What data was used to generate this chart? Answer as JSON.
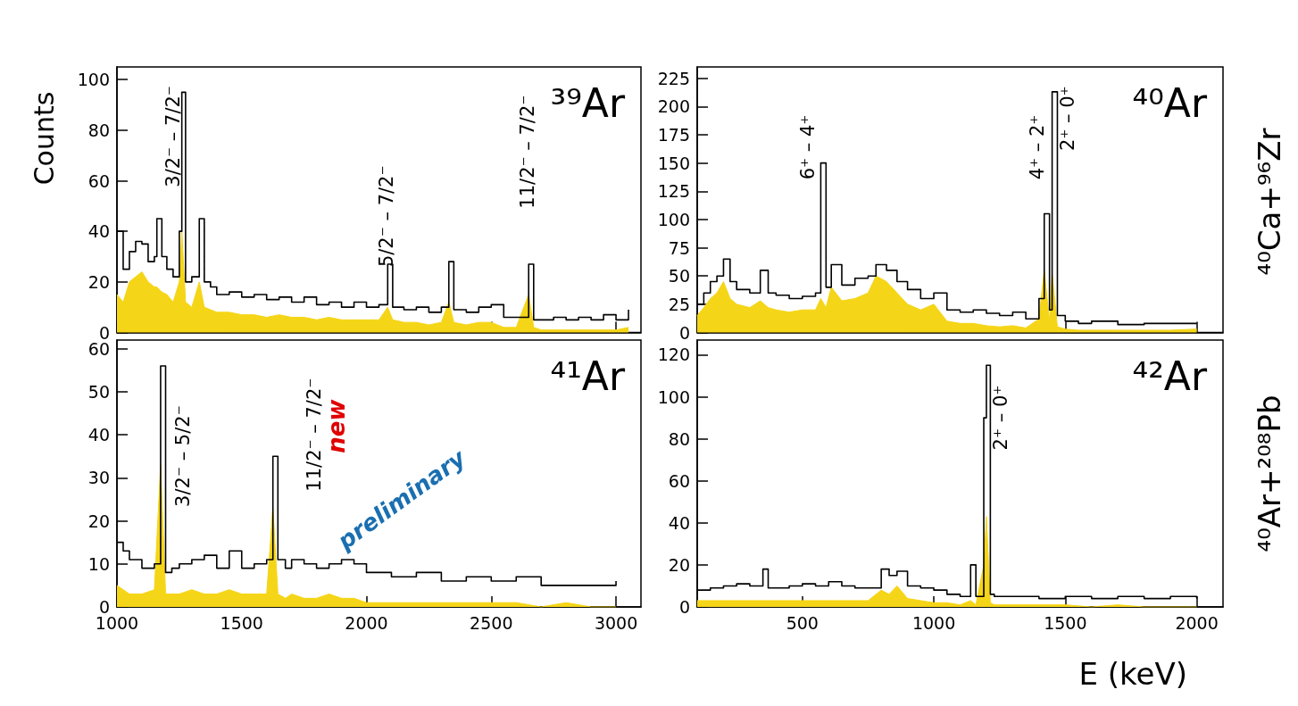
{
  "chart_data": [
    {
      "type": "step",
      "marker": "none",
      "ylabel": "Counts",
      "tick_labels": "y",
      "xlim": [
        1000,
        3100
      ],
      "xticks": [
        1000,
        1500,
        2000,
        2500,
        3000
      ],
      "ylim": [
        0,
        105
      ],
      "yticks": [
        0,
        20,
        40,
        60,
        80,
        100
      ],
      "x": [
        1000,
        1025,
        1050,
        1075,
        1100,
        1125,
        1150,
        1160,
        1180,
        1200,
        1225,
        1250,
        1260,
        1275,
        1300,
        1330,
        1350,
        1375,
        1400,
        1450,
        1500,
        1550,
        1600,
        1650,
        1700,
        1750,
        1800,
        1850,
        1900,
        1950,
        2000,
        2050,
        2085,
        2105,
        2150,
        2200,
        2250,
        2300,
        2330,
        2350,
        2400,
        2450,
        2500,
        2550,
        2600,
        2650,
        2670,
        2700,
        2750,
        2800,
        2850,
        2900,
        2950,
        3000,
        3050
      ],
      "series": [
        {
          "type": "area",
          "color": "#f5d517",
          "values": [
            15,
            12,
            20,
            22,
            24,
            20,
            18,
            18,
            16,
            15,
            12,
            20,
            40,
            12,
            10,
            20,
            10,
            9,
            8,
            8,
            7,
            7,
            6,
            7,
            6,
            6,
            5,
            6,
            5,
            5,
            5,
            5,
            10,
            5,
            4,
            4,
            3,
            4,
            12,
            4,
            3,
            4,
            4,
            2,
            2,
            15,
            2,
            1,
            1,
            1,
            1,
            1,
            1,
            1,
            2
          ]
        },
        {
          "color": "#000000",
          "values": [
            40,
            25,
            32,
            36,
            35,
            28,
            30,
            45,
            30,
            25,
            22,
            40,
            95,
            20,
            22,
            45,
            20,
            18,
            15,
            16,
            14,
            15,
            13,
            14,
            12,
            14,
            11,
            12,
            10,
            12,
            10,
            11,
            27,
            10,
            9,
            10,
            8,
            10,
            28,
            9,
            8,
            10,
            11,
            6,
            6,
            27,
            5,
            5,
            6,
            5,
            6,
            5,
            7,
            5,
            9
          ]
        }
      ],
      "annotations": [
        "³⁹Ar",
        "3/2⁻ – 7/2⁻",
        "5/2⁻ – 7/2⁻",
        "11/2⁻ – 7/2⁻"
      ]
    },
    {
      "type": "step",
      "marker": "none",
      "tick_labels": "y",
      "xlim": [
        100,
        2100
      ],
      "xticks": [
        500,
        1000,
        1500,
        2000
      ],
      "ylim": [
        0,
        235
      ],
      "yticks": [
        0,
        25,
        50,
        75,
        100,
        125,
        150,
        175,
        200,
        225
      ],
      "x": [
        100,
        125,
        150,
        175,
        200,
        225,
        250,
        300,
        340,
        370,
        400,
        450,
        500,
        550,
        570,
        590,
        610,
        650,
        700,
        750,
        780,
        820,
        860,
        900,
        950,
        1000,
        1050,
        1100,
        1150,
        1200,
        1250,
        1300,
        1350,
        1400,
        1420,
        1440,
        1450,
        1470,
        1500,
        1550,
        1600,
        1700,
        1800,
        1900,
        2000
      ],
      "series": [
        {
          "type": "area",
          "color": "#f5d517",
          "values": [
            15,
            22,
            30,
            35,
            45,
            30,
            25,
            22,
            28,
            22,
            20,
            18,
            20,
            20,
            30,
            22,
            40,
            28,
            30,
            35,
            50,
            45,
            35,
            25,
            20,
            25,
            10,
            8,
            8,
            6,
            5,
            6,
            4,
            12,
            55,
            10,
            52,
            5,
            3,
            2,
            2,
            2,
            2,
            2,
            3
          ]
        },
        {
          "color": "#000000",
          "values": [
            25,
            35,
            45,
            50,
            65,
            45,
            38,
            35,
            55,
            35,
            33,
            30,
            32,
            35,
            150,
            40,
            60,
            42,
            48,
            50,
            60,
            55,
            45,
            38,
            30,
            35,
            20,
            18,
            20,
            17,
            15,
            18,
            12,
            30,
            105,
            20,
            213,
            15,
            10,
            8,
            10,
            7,
            8,
            8,
            8
          ]
        }
      ],
      "annotations": [
        "⁴⁰Ar",
        "⁴⁰Ca+⁹⁶Zr",
        "6⁺ – 4⁺",
        "4⁺ – 2⁺",
        "2⁺ – 0⁺"
      ]
    },
    {
      "type": "step",
      "marker": "none",
      "xlim": [
        1000,
        3100
      ],
      "xticks": [
        1000,
        1500,
        2000,
        2500,
        3000
      ],
      "ylim": [
        0,
        62
      ],
      "yticks": [
        0,
        10,
        20,
        30,
        40,
        50,
        60
      ],
      "x": [
        1000,
        1025,
        1050,
        1100,
        1150,
        1175,
        1195,
        1220,
        1250,
        1300,
        1350,
        1400,
        1450,
        1500,
        1550,
        1600,
        1625,
        1645,
        1675,
        1700,
        1750,
        1800,
        1850,
        1900,
        1950,
        2000,
        2100,
        2200,
        2300,
        2400,
        2500,
        2600,
        2700,
        2800,
        2900,
        3000
      ],
      "series": [
        {
          "type": "area",
          "color": "#f5d517",
          "values": [
            5,
            4,
            3,
            3,
            4,
            33,
            3,
            3,
            3,
            4,
            3,
            3,
            4,
            3,
            3,
            3,
            23,
            3,
            2,
            3,
            2,
            2,
            3,
            2,
            2,
            1,
            1,
            1,
            1,
            1,
            1,
            1,
            0,
            1,
            0,
            0
          ]
        },
        {
          "color": "#000000",
          "values": [
            15,
            13,
            11,
            9,
            10,
            56,
            8,
            9,
            10,
            11,
            12,
            9,
            13,
            9,
            10,
            11,
            35,
            11,
            9,
            11,
            10,
            9,
            10,
            11,
            10,
            8,
            7,
            8,
            6,
            7,
            6,
            7,
            5,
            5,
            5,
            6
          ]
        }
      ],
      "annotations": [
        "⁴¹Ar",
        "3/2⁻ – 5/2⁻",
        "11/2⁻ – 7/2⁻",
        "new",
        "preliminary"
      ]
    },
    {
      "type": "step",
      "marker": "none",
      "xlabel": "E (keV)",
      "xlim": [
        100,
        2100
      ],
      "xticks": [
        500,
        1000,
        1500,
        2000
      ],
      "ylim": [
        0,
        127
      ],
      "yticks": [
        0,
        20,
        40,
        60,
        80,
        100,
        120
      ],
      "x": [
        100,
        150,
        200,
        250,
        300,
        350,
        370,
        400,
        450,
        500,
        550,
        600,
        650,
        700,
        750,
        800,
        830,
        860,
        900,
        950,
        1000,
        1050,
        1100,
        1140,
        1160,
        1190,
        1200,
        1215,
        1230,
        1300,
        1400,
        1500,
        1600,
        1700,
        1800,
        1900,
        2000
      ],
      "series": [
        {
          "type": "area",
          "color": "#f5d517",
          "values": [
            3,
            3,
            3,
            3,
            3,
            3,
            3,
            3,
            3,
            3,
            3,
            3,
            3,
            3,
            3,
            8,
            6,
            10,
            4,
            3,
            2,
            2,
            1,
            3,
            1,
            20,
            43,
            2,
            1,
            1,
            1,
            1,
            0,
            1,
            0,
            0,
            0
          ]
        },
        {
          "color": "#000000",
          "values": [
            8,
            9,
            10,
            11,
            10,
            18,
            9,
            9,
            10,
            11,
            10,
            12,
            10,
            9,
            9,
            18,
            15,
            17,
            10,
            9,
            8,
            6,
            5,
            20,
            5,
            90,
            115,
            6,
            5,
            5,
            4,
            5,
            4,
            5,
            4,
            5,
            4
          ]
        }
      ],
      "annotations": [
        "⁴²Ar",
        "⁴⁰Ar+²⁰⁸Pb",
        "2⁺ – 0⁺"
      ]
    }
  ]
}
